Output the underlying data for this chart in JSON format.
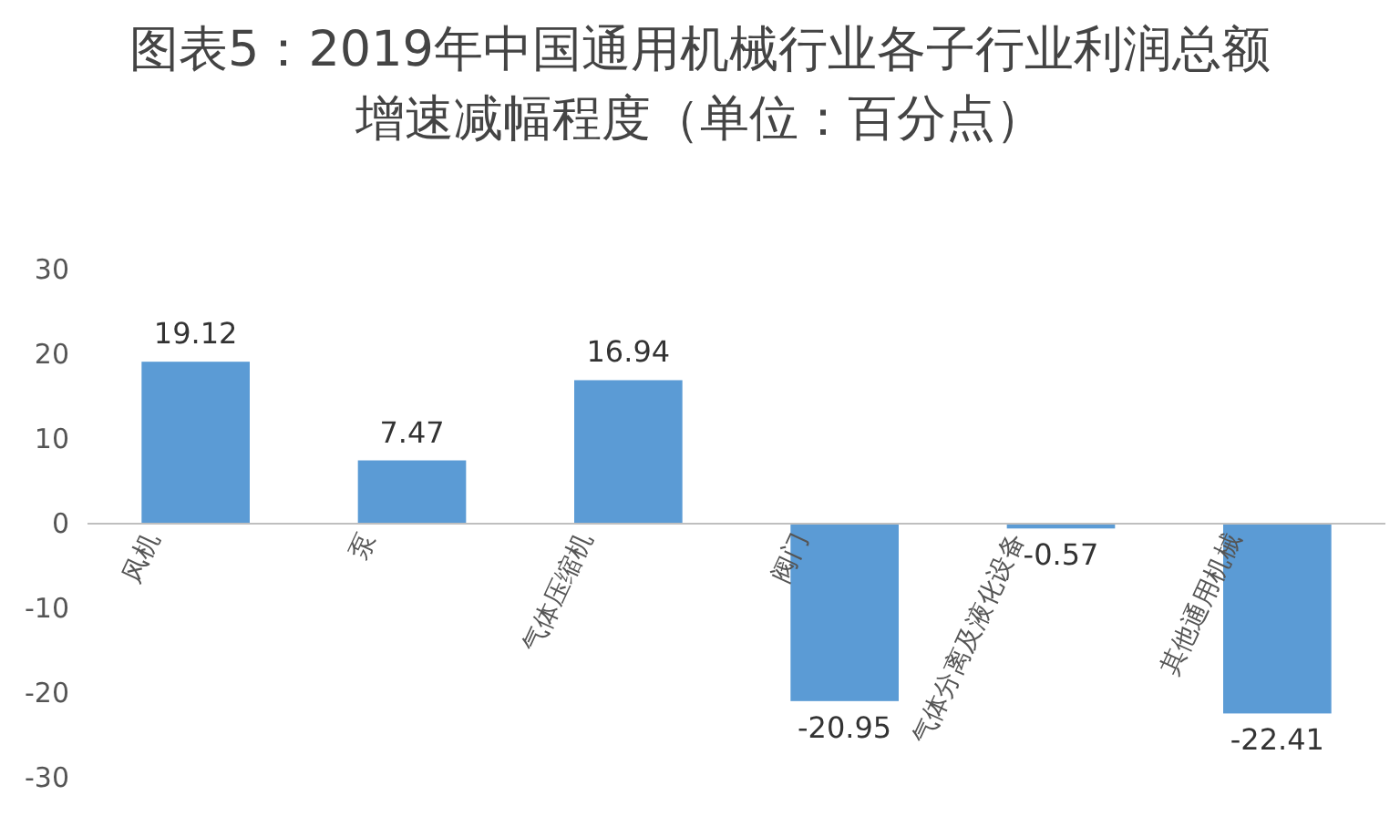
{
  "chart_data": {
    "type": "bar",
    "title": "图表5：2019年中国通用机械行业各子行业利润总额增速减幅程度（单位：百分点）",
    "categories": [
      "风机",
      "泵",
      "气体压缩机",
      "阀门",
      "气体分离及液化设备",
      "其他通用机械"
    ],
    "values": [
      19.12,
      7.47,
      16.94,
      -20.95,
      -0.57,
      -22.41
    ],
    "color": "#5b9bd5",
    "ylim": [
      -30,
      30
    ],
    "yticks": [
      -30,
      -20,
      -10,
      0,
      10,
      20,
      30
    ],
    "data_labels": true
  }
}
